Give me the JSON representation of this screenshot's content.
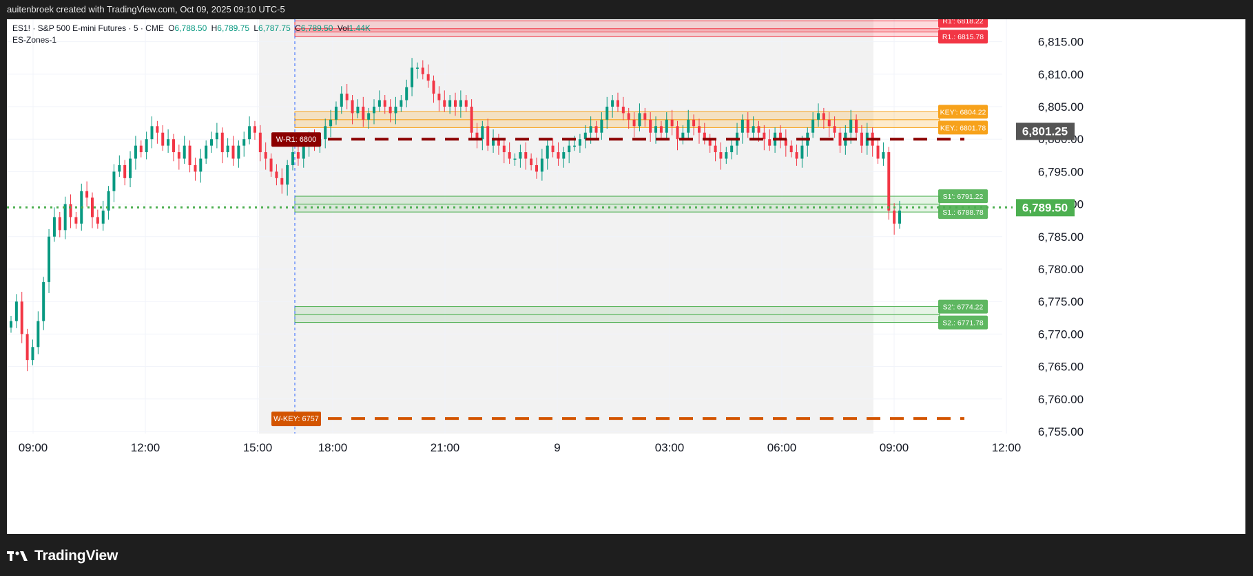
{
  "header": {
    "attribution": "auitenbroek created with TradingView.com, Oct 09, 2025 09:10 UTC-5"
  },
  "legend": {
    "symbol": "ES1! · S&P 500 E-mini Futures · 5 · CME",
    "open_label": "O",
    "open": "6,788.50",
    "high_label": "H",
    "high": "6,789.75",
    "low_label": "L",
    "low": "6,787.75",
    "close_label": "C",
    "close": "6,789.50",
    "vol_label": "Vol",
    "vol": "1.44K",
    "indicator": "ES-Zones-1"
  },
  "colors": {
    "up": "#089981",
    "down": "#f23645",
    "resistance": "#f23645",
    "key": "#f7a21b",
    "support": "#4caf50",
    "weekly_r1": "#8b0000",
    "weekly_key": "#d35400",
    "session_shade": "#f2f2f2",
    "current_price_bg": "#4caf50",
    "key_price_bg": "#555555"
  },
  "chart_data": {
    "type": "candlestick",
    "interval": "5",
    "ylim": [
      6755,
      6817.5
    ],
    "y_ticks": [
      "6,815.00",
      "6,810.00",
      "6,805.00",
      "6,800.00",
      "6,795.00",
      "6,790.00",
      "6,785.00",
      "6,780.00",
      "6,775.00",
      "6,770.00",
      "6,765.00",
      "6,760.00",
      "6,755.00"
    ],
    "x_ticks": [
      "09:00",
      "12:00",
      "15:00",
      "18:00",
      "21:00",
      "9",
      "03:00",
      "06:00",
      "09:00",
      "12:00"
    ],
    "last_price": 6789.5,
    "last_price_label": "6,789.50",
    "marker_price": 6801.25,
    "marker_price_label": "6,801.25",
    "zones": [
      {
        "name": "R1'",
        "label": "R1': 6818.22",
        "high": 6818.22,
        "low": 6816.5,
        "kind": "resistance"
      },
      {
        "name": "R1.",
        "label": "R1.: 6815.78",
        "high": 6817.0,
        "low": 6815.78,
        "kind": "resistance"
      },
      {
        "name": "KEY'",
        "label": "KEY': 6804.22",
        "high": 6804.22,
        "low": 6803.0,
        "kind": "key"
      },
      {
        "name": "KEY.",
        "label": "KEY.: 6801.78",
        "high": 6803.0,
        "low": 6801.78,
        "kind": "key"
      },
      {
        "name": "S1'",
        "label": "S1': 6791.22",
        "high": 6791.22,
        "low": 6790.0,
        "kind": "support"
      },
      {
        "name": "S1.",
        "label": "S1.: 6788.78",
        "high": 6790.0,
        "low": 6788.78,
        "kind": "support"
      },
      {
        "name": "S2'",
        "label": "S2': 6774.22",
        "high": 6774.22,
        "low": 6773.0,
        "kind": "support"
      },
      {
        "name": "S2.",
        "label": "S2.: 6771.78",
        "high": 6773.0,
        "low": 6771.78,
        "kind": "support"
      }
    ],
    "weekly_levels": [
      {
        "label": "W-R1: 6800",
        "value": 6800,
        "kind": "weekly_r1"
      },
      {
        "label": "W-KEY: 6757",
        "value": 6757,
        "kind": "weekly_key"
      }
    ],
    "series_close": [
      6772,
      6775,
      6770,
      6766,
      6768,
      6772,
      6778,
      6785,
      6788,
      6786,
      6790,
      6788,
      6787,
      6792,
      6791,
      6788,
      6787,
      6789,
      6792,
      6795,
      6796,
      6794,
      6797,
      6799,
      6798,
      6800,
      6802,
      6801,
      6799,
      6800,
      6798,
      6797,
      6799,
      6796,
      6795,
      6797,
      6799,
      6800,
      6801,
      6798,
      6799,
      6797,
      6799,
      6800,
      6802,
      6801,
      6798,
      6797,
      6795,
      6794,
      6793,
      6796,
      6798,
      6797,
      6799,
      6800,
      6799,
      6800,
      6802,
      6803,
      6805,
      6807,
      6806,
      6804,
      6805,
      6803,
      6804,
      6805,
      6806,
      6805,
      6804,
      6805,
      6806,
      6808,
      6811,
      6811,
      6810,
      6809,
      6807,
      6806,
      6805,
      6806,
      6805,
      6806,
      6805,
      6801,
      6800,
      6802,
      6799,
      6800,
      6799,
      6798,
      6797,
      6797,
      6798,
      6797,
      6796,
      6795,
      6797,
      6799,
      6798,
      6797,
      6798,
      6799,
      6799,
      6800,
      6801,
      6802,
      6801,
      6803,
      6805,
      6806,
      6805,
      6804,
      6803,
      6802,
      6804,
      6803,
      6801,
      6802,
      6801,
      6803,
      6802,
      6800,
      6801,
      6803,
      6802,
      6801,
      6800,
      6799,
      6798,
      6797,
      6798,
      6799,
      6801,
      6803,
      6801,
      6802,
      6801,
      6800,
      6799,
      6801,
      6800,
      6799,
      6798,
      6797,
      6799,
      6801,
      6803,
      6804,
      6803,
      6802,
      6801,
      6799,
      6801,
      6803,
      6801,
      6799,
      6801,
      6799,
      6797,
      6798,
      6789,
      6787,
      6789
    ]
  },
  "footer": {
    "brand": "TradingView",
    "logo_icon": "tradingview-logo-icon"
  }
}
